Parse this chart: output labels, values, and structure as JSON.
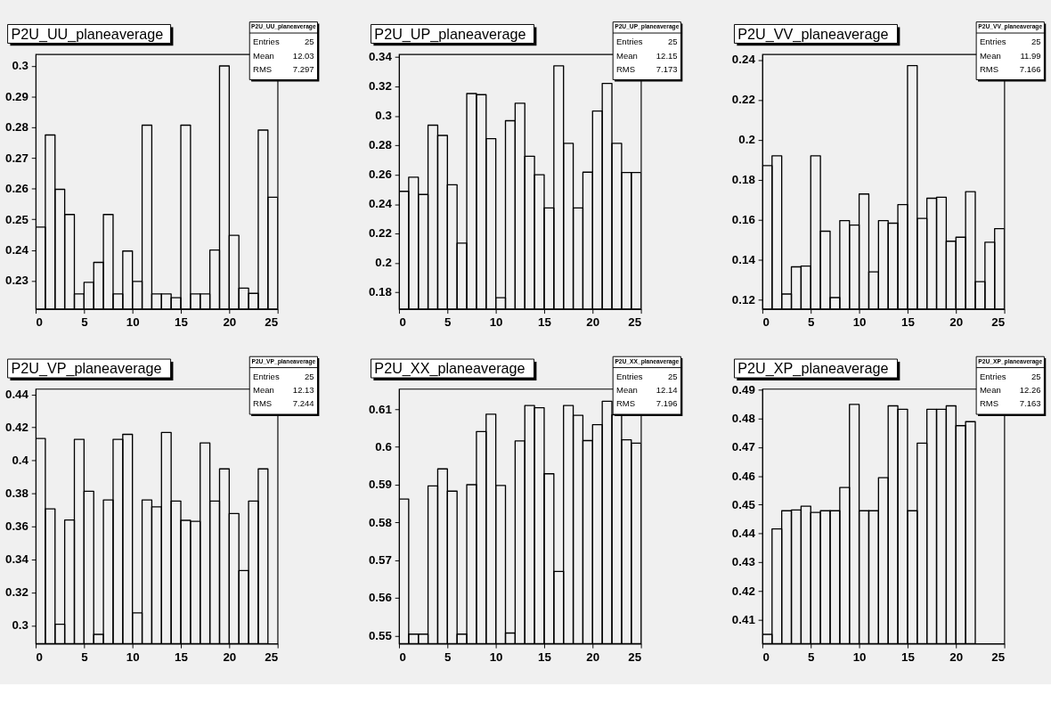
{
  "chart_data": [
    {
      "type": "histogram",
      "title": "P2U_UU_planeaverage",
      "annotations": [
        "P2U_UU_planeaverage",
        "Entries",
        "25",
        "Mean",
        "12.03",
        "RMS",
        "7.297"
      ],
      "color": "#000000",
      "bins": [
        0,
        1,
        2,
        3,
        4,
        5,
        6,
        7,
        8,
        9,
        10,
        11,
        12,
        13,
        14,
        15,
        16,
        17,
        18,
        19,
        20,
        21,
        22,
        23,
        24,
        25
      ],
      "values": [
        0.2475,
        0.2775,
        0.2598,
        0.2516,
        0.2257,
        0.2295,
        0.236,
        0.2516,
        0.2257,
        0.2397,
        0.2298,
        0.2807,
        0.2257,
        0.2257,
        0.2245,
        0.2807,
        0.2257,
        0.2257,
        0.24,
        0.3,
        0.2448,
        0.2276,
        0.2259,
        0.2791,
        0.2572
      ],
      "xlim": [
        0,
        25
      ],
      "xticks": [
        0,
        5,
        10,
        15,
        20,
        25
      ],
      "ylim": [
        0.2208,
        0.3038
      ],
      "yticks": [
        0.23,
        0.24,
        0.25,
        0.26,
        0.27,
        0.28,
        0.29,
        0.3
      ],
      "grid": false
    },
    {
      "type": "histogram",
      "title": "P2U_UP_planeaverage",
      "annotations": [
        "P2U_UP_planeaverage",
        "Entries",
        "25",
        "Mean",
        "12.15",
        "RMS",
        "7.173"
      ],
      "color": "#000000",
      "bins": [
        0,
        1,
        2,
        3,
        4,
        5,
        6,
        7,
        8,
        9,
        10,
        11,
        12,
        13,
        14,
        15,
        16,
        17,
        18,
        19,
        20,
        21,
        22,
        23,
        24,
        25
      ],
      "values": [
        0.2487,
        0.2583,
        0.2466,
        0.2937,
        0.2867,
        0.2532,
        0.2135,
        0.3152,
        0.3144,
        0.2845,
        0.1764,
        0.2967,
        0.3086,
        0.2726,
        0.26,
        0.2374,
        0.334,
        0.2813,
        0.2374,
        0.2617,
        0.3033,
        0.3221,
        0.2813,
        0.2615,
        0.2615
      ],
      "xlim": [
        0,
        25
      ],
      "xticks": [
        0,
        5,
        10,
        15,
        20,
        25
      ],
      "ylim": [
        0.1687,
        0.3419
      ],
      "yticks": [
        0.18,
        0.2,
        0.22,
        0.24,
        0.26,
        0.28,
        0.3,
        0.32,
        0.34
      ],
      "grid": false
    },
    {
      "type": "histogram",
      "title": "P2U_VV_planeaverage",
      "annotations": [
        "P2U_VV_planeaverage",
        "Entries",
        "25",
        "Mean",
        "11.99",
        "RMS",
        "7.166"
      ],
      "color": "#000000",
      "bins": [
        0,
        1,
        2,
        3,
        4,
        5,
        6,
        7,
        8,
        9,
        10,
        11,
        12,
        13,
        14,
        15,
        16,
        17,
        18,
        19,
        20,
        21,
        22,
        23,
        24,
        25
      ],
      "values": [
        0.1871,
        0.192,
        0.1229,
        0.1365,
        0.1369,
        0.192,
        0.1543,
        0.1211,
        0.1596,
        0.1574,
        0.1729,
        0.134,
        0.1596,
        0.1583,
        0.1676,
        0.2371,
        0.1607,
        0.1708,
        0.1713,
        0.1493,
        0.1513,
        0.1741,
        0.1291,
        0.1488,
        0.1556
      ],
      "xlim": [
        0,
        25
      ],
      "xticks": [
        0,
        5,
        10,
        15,
        20,
        25
      ],
      "ylim": [
        0.1154,
        0.2428
      ],
      "yticks": [
        0.12,
        0.14,
        0.16,
        0.18,
        0.2,
        0.22,
        0.24
      ],
      "grid": false
    },
    {
      "type": "histogram",
      "title": "P2U_VP_planeaverage",
      "annotations": [
        "P2U_VP_planeaverage",
        "Entries",
        "25",
        "Mean",
        "12.13",
        "RMS",
        "7.244"
      ],
      "color": "#000000",
      "bins": [
        0,
        1,
        2,
        3,
        4,
        5,
        6,
        7,
        8,
        9,
        10,
        11,
        12,
        13,
        14,
        15,
        16,
        17,
        18,
        19,
        20,
        21,
        22,
        23,
        24,
        25
      ],
      "values": [
        0.4133,
        0.3707,
        0.3007,
        0.3639,
        0.4128,
        0.3813,
        0.2946,
        0.3761,
        0.4128,
        0.4158,
        0.3076,
        0.3761,
        0.3719,
        0.417,
        0.3754,
        0.3637,
        0.3631,
        0.4106,
        0.3754,
        0.3949,
        0.3678,
        0.3333,
        0.3754,
        0.3949,
        null
      ],
      "xlim": [
        0,
        25
      ],
      "xticks": [
        0,
        5,
        10,
        15,
        20,
        25
      ],
      "ylim": [
        0.289,
        0.4434
      ],
      "yticks": [
        0.3,
        0.32,
        0.34,
        0.36,
        0.38,
        0.4,
        0.42,
        0.44
      ],
      "grid": false
    },
    {
      "type": "histogram",
      "title": "P2U_XX_planeaverage",
      "annotations": [
        "P2U_XX_planeaverage",
        "Entries",
        "25",
        "Mean",
        "12.14",
        "RMS",
        "7.196"
      ],
      "color": "#000000",
      "bins": [
        0,
        1,
        2,
        3,
        4,
        5,
        6,
        7,
        8,
        9,
        10,
        11,
        12,
        13,
        14,
        15,
        16,
        17,
        18,
        19,
        20,
        21,
        22,
        23,
        24,
        25
      ],
      "values": [
        0.5862,
        0.5504,
        0.5504,
        0.5897,
        0.5942,
        0.5883,
        0.5504,
        0.59,
        0.6041,
        0.6087,
        0.5898,
        0.5507,
        0.6016,
        0.611,
        0.6104,
        0.5929,
        0.567,
        0.611,
        0.6084,
        0.6017,
        0.6059,
        0.6121,
        0.6085,
        0.6019,
        0.601
      ],
      "xlim": [
        0,
        25
      ],
      "xticks": [
        0,
        5,
        10,
        15,
        20,
        25
      ],
      "ylim": [
        0.5479,
        0.6154
      ],
      "yticks": [
        0.55,
        0.56,
        0.57,
        0.58,
        0.59,
        0.6,
        0.61
      ],
      "grid": false
    },
    {
      "type": "histogram",
      "title": "P2U_XP_planeaverage",
      "annotations": [
        "P2U_XP_planeaverage",
        "Entries",
        "25",
        "Mean",
        "12.26",
        "RMS",
        "7.163"
      ],
      "color": "#000000",
      "bins": [
        0,
        1,
        2,
        3,
        4,
        5,
        6,
        7,
        8,
        9,
        10,
        11,
        12,
        13,
        14,
        15,
        16,
        17,
        18,
        19,
        20,
        21,
        22,
        23,
        24,
        25
      ],
      "values": [
        0.4049,
        0.4416,
        0.4479,
        0.4482,
        0.4495,
        0.4473,
        0.4479,
        0.4479,
        0.456,
        0.4849,
        0.4479,
        0.4479,
        0.4594,
        0.4844,
        0.4832,
        0.4479,
        0.4714,
        0.4832,
        0.4832,
        0.4844,
        0.4775,
        0.4789,
        null,
        null,
        null
      ],
      "xlim": [
        0,
        25
      ],
      "xticks": [
        0,
        5,
        10,
        15,
        20,
        25
      ],
      "ylim": [
        0.4017,
        0.4903
      ],
      "yticks": [
        0.41,
        0.42,
        0.43,
        0.44,
        0.45,
        0.46,
        0.47,
        0.48,
        0.49
      ],
      "grid": false
    }
  ]
}
